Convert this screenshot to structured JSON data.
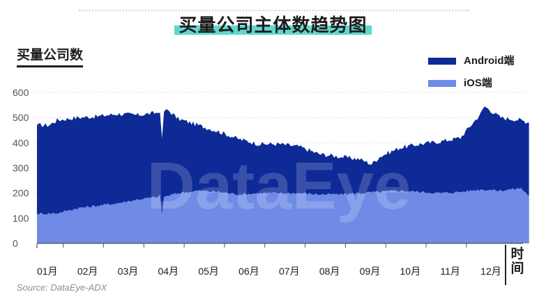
{
  "title": "买量公司主体数趋势图",
  "y_axis_title": "买量公司数",
  "x_axis_title": "时间",
  "source": "Source: DataEye-ADX",
  "watermark": "DataEye",
  "colors": {
    "android": "#0e2a97",
    "ios": "#6f8be6",
    "title_highlight": "#5ed8cf"
  },
  "chart_data": {
    "type": "area",
    "stacked": false,
    "title": "买量公司主体数趋势图",
    "ylabel": "买量公司数",
    "xlabel": "时间",
    "ylim": [
      0,
      600
    ],
    "yticks": [
      0,
      100,
      200,
      300,
      400,
      500,
      600
    ],
    "grid": true,
    "legend_position": "top-right",
    "categories": [
      "01月",
      "02月",
      "03月",
      "04月",
      "05月",
      "06月",
      "07月",
      "08月",
      "09月",
      "10月",
      "11月",
      "12月"
    ],
    "x_month_position": [
      0,
      1,
      2,
      3,
      4,
      5,
      6,
      7,
      8,
      9,
      10,
      11
    ],
    "series": [
      {
        "name": "Android端",
        "key": "android",
        "points": [
          [
            0,
            470
          ],
          [
            0.3,
            470
          ],
          [
            0.5,
            490
          ],
          [
            1,
            500
          ],
          [
            1.5,
            505
          ],
          [
            2,
            515
          ],
          [
            2.5,
            510
          ],
          [
            3,
            520
          ],
          [
            3.05,
            528
          ],
          [
            3.1,
            410
          ],
          [
            3.15,
            525
          ],
          [
            3.25,
            530
          ],
          [
            3.5,
            495
          ],
          [
            4,
            470
          ],
          [
            4.5,
            445
          ],
          [
            5,
            415
          ],
          [
            5.5,
            395
          ],
          [
            6,
            395
          ],
          [
            6.5,
            385
          ],
          [
            7,
            355
          ],
          [
            7.5,
            345
          ],
          [
            8,
            335
          ],
          [
            8.3,
            315
          ],
          [
            8.5,
            345
          ],
          [
            9,
            380
          ],
          [
            9.5,
            395
          ],
          [
            10,
            405
          ],
          [
            10.5,
            420
          ],
          [
            11,
            515
          ],
          [
            11.1,
            545
          ],
          [
            11.5,
            500
          ],
          [
            12,
            490
          ],
          [
            12.2,
            480
          ]
        ]
      },
      {
        "name": "iOS端",
        "key": "ios",
        "points": [
          [
            0,
            118
          ],
          [
            0.5,
            120
          ],
          [
            1,
            140
          ],
          [
            1.5,
            150
          ],
          [
            2,
            160
          ],
          [
            2.5,
            175
          ],
          [
            3,
            185
          ],
          [
            3.05,
            190
          ],
          [
            3.1,
            120
          ],
          [
            3.15,
            185
          ],
          [
            3.5,
            200
          ],
          [
            4,
            210
          ],
          [
            4.5,
            205
          ],
          [
            5,
            195
          ],
          [
            5.5,
            200
          ],
          [
            6,
            200
          ],
          [
            6.5,
            200
          ],
          [
            7,
            195
          ],
          [
            7.5,
            195
          ],
          [
            8,
            200
          ],
          [
            8.5,
            205
          ],
          [
            9,
            210
          ],
          [
            9.5,
            205
          ],
          [
            10,
            200
          ],
          [
            10.5,
            205
          ],
          [
            11,
            215
          ],
          [
            11.5,
            210
          ],
          [
            12,
            220
          ],
          [
            12.2,
            190
          ]
        ]
      }
    ]
  }
}
